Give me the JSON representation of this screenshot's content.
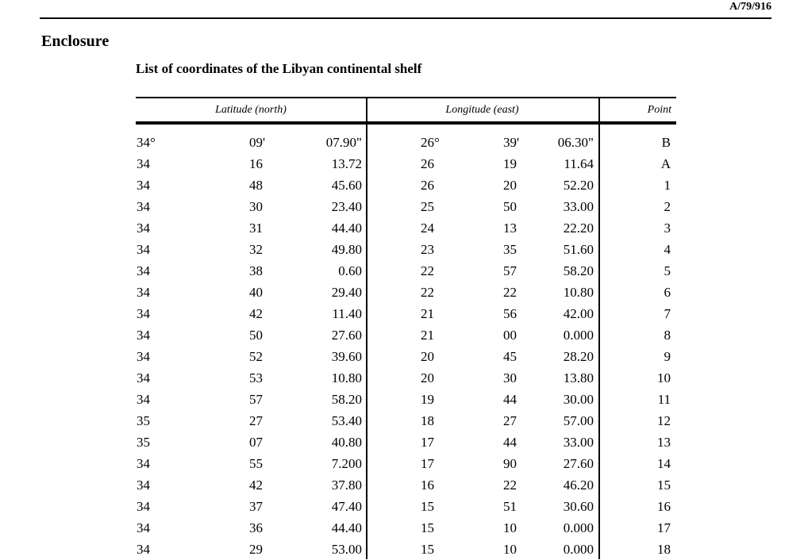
{
  "page": {
    "doc_ref": "A/79/916",
    "heading": "Enclosure",
    "subtitle": "List of coordinates of the Libyan continental shelf"
  },
  "table": {
    "headers": {
      "latitude": "Latitude (north)",
      "longitude": "Longitude (east)",
      "point": "Point"
    },
    "columns": [
      "lat_degrees",
      "lat_minutes",
      "lat_seconds",
      "lon_degrees",
      "lon_minutes",
      "lon_seconds",
      "point"
    ],
    "rows": [
      [
        "34°",
        "09'",
        "07.90\"",
        "26°",
        "39'",
        "06.30\"",
        "B"
      ],
      [
        "34",
        "16",
        "13.72",
        "26",
        "19",
        "11.64",
        "A"
      ],
      [
        "34",
        "48",
        "45.60",
        "26",
        "20",
        "52.20",
        "1"
      ],
      [
        "34",
        "30",
        "23.40",
        "25",
        "50",
        "33.00",
        "2"
      ],
      [
        "34",
        "31",
        "44.40",
        "24",
        "13",
        "22.20",
        "3"
      ],
      [
        "34",
        "32",
        "49.80",
        "23",
        "35",
        "51.60",
        "4"
      ],
      [
        "34",
        "38",
        "0.60",
        "22",
        "57",
        "58.20",
        "5"
      ],
      [
        "34",
        "40",
        "29.40",
        "22",
        "22",
        "10.80",
        "6"
      ],
      [
        "34",
        "42",
        "11.40",
        "21",
        "56",
        "42.00",
        "7"
      ],
      [
        "34",
        "50",
        "27.60",
        "21",
        "00",
        "0.000",
        "8"
      ],
      [
        "34",
        "52",
        "39.60",
        "20",
        "45",
        "28.20",
        "9"
      ],
      [
        "34",
        "53",
        "10.80",
        "20",
        "30",
        "13.80",
        "10"
      ],
      [
        "34",
        "57",
        "58.20",
        "19",
        "44",
        "30.00",
        "11"
      ],
      [
        "35",
        "27",
        "53.40",
        "18",
        "27",
        "57.00",
        "12"
      ],
      [
        "35",
        "07",
        "40.80",
        "17",
        "44",
        "33.00",
        "13"
      ],
      [
        "34",
        "55",
        "7.200",
        "17",
        "90",
        "27.60",
        "14"
      ],
      [
        "34",
        "42",
        "37.80",
        "16",
        "22",
        "46.20",
        "15"
      ],
      [
        "34",
        "37",
        "47.40",
        "15",
        "51",
        "30.60",
        "16"
      ],
      [
        "34",
        "36",
        "44.40",
        "15",
        "10",
        "0.000",
        "17"
      ],
      [
        "34",
        "29",
        "53.00",
        "15",
        "10",
        "0.000",
        "18"
      ]
    ]
  },
  "colors": {
    "text": "#000000",
    "background": "#ffffff",
    "rule": "#000000"
  }
}
